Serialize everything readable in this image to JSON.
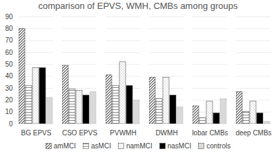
{
  "chart_data": {
    "type": "bar",
    "title": "comparison of EPVS, WMH, CMBs among groups",
    "categories": [
      "BG EPVS",
      "CSO EPVS",
      "PVWMH",
      "DWMH",
      "lobar CMBs",
      "deep CMBs"
    ],
    "series": [
      {
        "name": "amMCI",
        "color": "#555555",
        "values": [
          80,
          49,
          41,
          39,
          15,
          27
        ]
      },
      {
        "name": "asMCI",
        "color": "#777777",
        "values": [
          32,
          29,
          32,
          21,
          5,
          10
        ]
      },
      {
        "name": "namMCI",
        "color": "#999999",
        "values": [
          47,
          28,
          52,
          39,
          19,
          19
        ]
      },
      {
        "name": "nasMCI",
        "color": "#000000",
        "values": [
          47,
          24,
          32,
          24,
          9,
          9
        ]
      },
      {
        "name": "controls",
        "color": "#d9d9d9",
        "values": [
          22,
          27,
          20,
          14,
          21,
          2
        ]
      }
    ],
    "ylim": [
      0,
      90
    ],
    "yticks": [
      0,
      10,
      20,
      30,
      40,
      50,
      60,
      70,
      80,
      90
    ],
    "grid": true,
    "legend": "bottom"
  }
}
